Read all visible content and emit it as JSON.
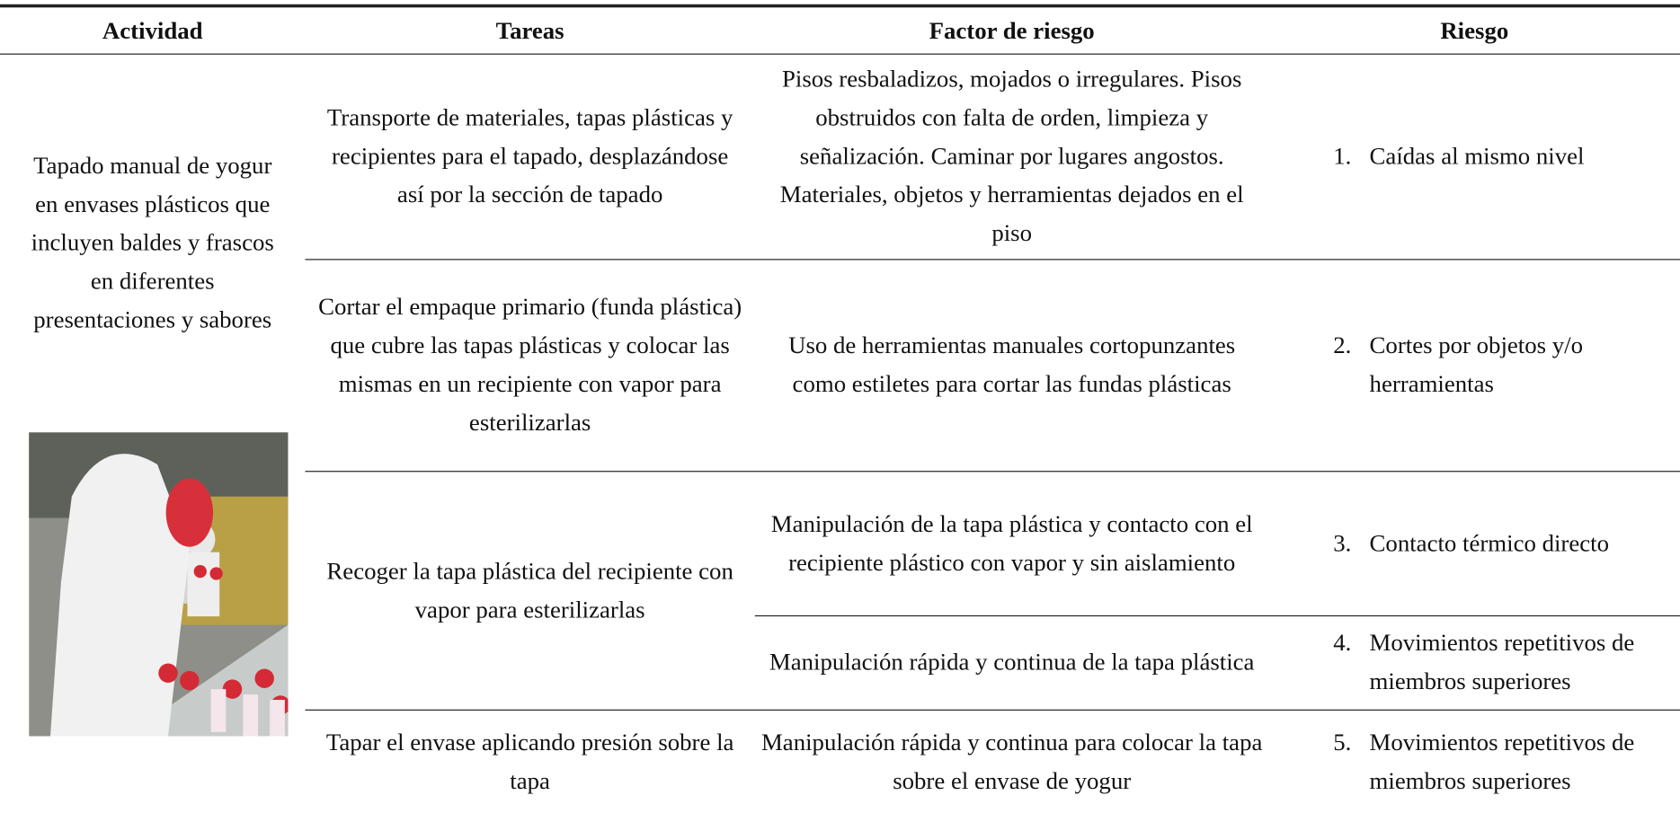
{
  "table": {
    "headers": [
      "Actividad",
      "Tareas",
      "Factor de riesgo",
      "Riesgo"
    ],
    "activity": "Tapado manual de yogur en envases plásticos que incluyen baldes y frascos en diferentes presentaciones y sabores",
    "rows": [
      {
        "task": "Transporte de materiales, tapas plásticas y recipientes para el tapado, desplazándose así por la sección de tapado",
        "factors": [
          {
            "factor": "Pisos resbaladizos, mojados o irregulares. Pisos obstruidos con falta de orden, limpieza y señalización. Caminar por lugares angostos. Materiales, objetos y herramientas dejados en el piso",
            "number": "1.",
            "risk": "Caídas al mismo nivel"
          }
        ]
      },
      {
        "task": "Cortar el empaque primario (funda plástica) que cubre las tapas plásticas y colocar las mismas en un recipiente con vapor para esterilizarlas",
        "factors": [
          {
            "factor": "Uso de herramientas manuales cortopunzantes como estiletes para cortar las fundas plásticas",
            "number": "2.",
            "risk": "Cortes por objetos y/o herramientas"
          }
        ]
      },
      {
        "task": "Recoger la tapa plástica del recipiente con vapor para esterilizarlas",
        "factors": [
          {
            "factor": "Manipulación de la tapa plástica y contacto con el recipiente plástico con vapor y sin aislamiento",
            "number": "3.",
            "risk": "Contacto térmico directo"
          },
          {
            "factor": "Manipulación rápida y continua de la tapa plástica",
            "number": "4.",
            "risk": "Movimientos repetitivos de miembros superiores"
          }
        ]
      },
      {
        "task": "Tapar el envase aplicando presión sobre la tapa",
        "factors": [
          {
            "factor": "Manipulación rápida y continua para colocar la tapa sobre el envase de yogur",
            "number": "5.",
            "risk": "Movimientos repetitivos de miembros superiores"
          }
        ]
      }
    ]
  }
}
